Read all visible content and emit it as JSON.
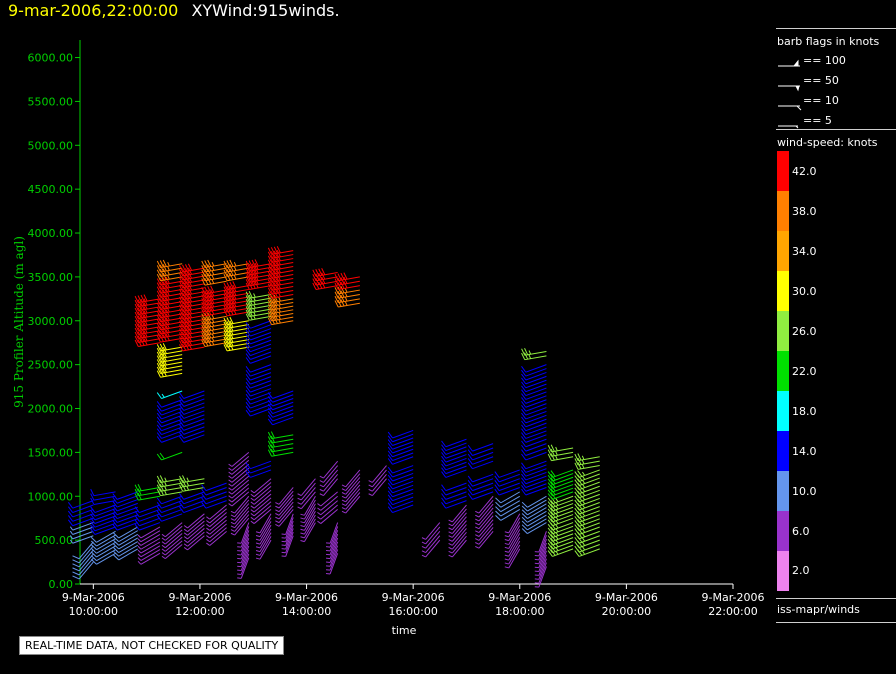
{
  "header": {
    "timestamp": "9-mar-2006,22:00:00",
    "title": "XYWind:915winds."
  },
  "colors": {
    "axis": "#00d000",
    "text": "#ffffff",
    "background": "#000000"
  },
  "legend": {
    "barb_title": "barb flags in knots",
    "barb_items": [
      "== 100",
      "== 50",
      "== 10",
      "== 5"
    ],
    "speed_title": "wind-speed: knots",
    "speed_labels": [
      "42.0",
      "38.0",
      "34.0",
      "30.0",
      "26.0",
      "22.0",
      "18.0",
      "14.0",
      "10.0",
      "6.0",
      "2.0"
    ],
    "speed_colors": [
      "#ff0000",
      "#ff7f00",
      "#ffa500",
      "#ffff00",
      "#90ee40",
      "#00e000",
      "#00ffff",
      "#0000ff",
      "#6495ed",
      "#9932cc",
      "#ee82ee"
    ],
    "source": "iss-mapr/winds"
  },
  "qc_notice": "REAL-TIME DATA, NOT CHECKED FOR QUALITY",
  "chart_data": {
    "type": "scatter",
    "title": "XYWind:915winds.",
    "xlabel": "time",
    "ylabel": "915 Profiler Altitude (m agl)",
    "ylim": [
      0,
      6200
    ],
    "yticks": [
      "0.00",
      "500.00",
      "1000.00",
      "1500.00",
      "2000.00",
      "2500.00",
      "3000.00",
      "3500.00",
      "4000.00",
      "4500.00",
      "5000.00",
      "5500.00",
      "6000.00"
    ],
    "xlim": [
      "9-Mar-2006 09:45:00",
      "9-Mar-2006 22:00:00"
    ],
    "xticks": [
      {
        "date": "9-Mar-2006",
        "time": "10:00:00"
      },
      {
        "date": "9-Mar-2006",
        "time": "12:00:00"
      },
      {
        "date": "9-Mar-2006",
        "time": "14:00:00"
      },
      {
        "date": "9-Mar-2006",
        "time": "16:00:00"
      },
      {
        "date": "9-Mar-2006",
        "time": "18:00:00"
      },
      {
        "date": "9-Mar-2006",
        "time": "20:00:00"
      },
      {
        "date": "9-Mar-2006",
        "time": "22:00:00"
      }
    ],
    "legend": "right",
    "grid": false,
    "profiles": [
      {
        "time": "9-Mar-2006 10:00",
        "layers": [
          [
            250,
            480,
            10,
            220
          ],
          [
            550,
            700,
            8,
            250
          ],
          [
            750,
            950,
            14,
            250
          ]
        ]
      },
      {
        "time": "9-Mar-2006 10:25",
        "layers": [
          [
            350,
            600,
            10,
            240
          ],
          [
            650,
            900,
            12,
            250
          ],
          [
            950,
            1050,
            14,
            260
          ]
        ]
      },
      {
        "time": "9-Mar-2006 10:50",
        "layers": [
          [
            400,
            650,
            10,
            240
          ],
          [
            700,
            1050,
            14,
            250
          ]
        ]
      },
      {
        "time": "9-Mar-2006 11:15",
        "layers": [
          [
            350,
            650,
            6,
            240
          ],
          [
            700,
            900,
            12,
            250
          ],
          [
            1000,
            1100,
            20,
            260
          ],
          [
            2750,
            3250,
            42,
            260
          ]
        ]
      },
      {
        "time": "9-Mar-2006 11:40",
        "layers": [
          [
            450,
            700,
            6,
            230
          ],
          [
            800,
            1000,
            14,
            250
          ],
          [
            1050,
            1200,
            26,
            260
          ],
          [
            1500,
            1500,
            22,
            250
          ],
          [
            1700,
            2100,
            14,
            250
          ],
          [
            2200,
            2200,
            18,
            250
          ],
          [
            2400,
            2700,
            30,
            260
          ],
          [
            2800,
            3450,
            42,
            260
          ],
          [
            3500,
            3650,
            38,
            260
          ]
        ]
      },
      {
        "time": "9-Mar-2006 12:05",
        "layers": [
          [
            550,
            800,
            6,
            230
          ],
          [
            900,
            1050,
            12,
            250
          ],
          [
            1100,
            1200,
            26,
            260
          ],
          [
            1700,
            2200,
            14,
            250
          ],
          [
            2700,
            3600,
            42,
            260
          ]
        ]
      },
      {
        "time": "9-Mar-2006 12:30",
        "layers": [
          [
            600,
            900,
            6,
            230
          ],
          [
            950,
            1150,
            14,
            250
          ],
          [
            2750,
            3050,
            38,
            260
          ],
          [
            3100,
            3350,
            42,
            260
          ],
          [
            3450,
            3650,
            38,
            260
          ]
        ]
      },
      {
        "time": "9-Mar-2006 12:55",
        "layers": [
          [
            300,
            700,
            6,
            200
          ],
          [
            750,
            1000,
            6,
            220
          ],
          [
            1050,
            1500,
            6,
            230
          ],
          [
            2700,
            3000,
            30,
            260
          ],
          [
            3100,
            3400,
            42,
            260
          ],
          [
            3500,
            3650,
            38,
            260
          ]
        ]
      },
      {
        "time": "9-Mar-2006 13:20",
        "layers": [
          [
            500,
            800,
            6,
            210
          ],
          [
            850,
            1200,
            6,
            230
          ],
          [
            1300,
            1400,
            14,
            250
          ],
          [
            2000,
            2500,
            14,
            250
          ],
          [
            2600,
            3000,
            14,
            250
          ],
          [
            3050,
            3300,
            26,
            260
          ],
          [
            3400,
            3650,
            42,
            260
          ]
        ]
      },
      {
        "time": "9-Mar-2006 13:45",
        "layers": [
          [
            550,
            800,
            6,
            200
          ],
          [
            850,
            1100,
            6,
            220
          ],
          [
            1500,
            1700,
            22,
            260
          ],
          [
            1900,
            2200,
            14,
            250
          ],
          [
            3000,
            3250,
            38,
            260
          ],
          [
            3300,
            3800,
            42,
            260
          ]
        ]
      },
      {
        "time": "9-Mar-2006 14:10",
        "layers": [
          [
            700,
            1000,
            6,
            210
          ],
          [
            1050,
            1200,
            6,
            220
          ]
        ]
      },
      {
        "time": "9-Mar-2006 14:35",
        "layers": [
          [
            350,
            700,
            6,
            200
          ],
          [
            850,
            1050,
            6,
            230
          ],
          [
            1200,
            1400,
            6,
            220
          ],
          [
            3400,
            3550,
            42,
            260
          ]
        ]
      },
      {
        "time": "9-Mar-2006 15:00",
        "layers": [
          [
            1000,
            1300,
            6,
            220
          ],
          [
            3200,
            3350,
            38,
            260
          ],
          [
            3400,
            3500,
            42,
            260
          ]
        ]
      },
      {
        "time": "9-Mar-2006 15:30",
        "layers": [
          [
            1200,
            1350,
            6,
            220
          ]
        ]
      },
      {
        "time": "9-Mar-2006 16:00",
        "layers": [
          [
            900,
            1350,
            14,
            250
          ],
          [
            1450,
            1750,
            14,
            250
          ]
        ]
      },
      {
        "time": "9-Mar-2006 16:30",
        "layers": [
          [
            500,
            700,
            6,
            220
          ]
        ]
      },
      {
        "time": "9-Mar-2006 17:00",
        "layers": [
          [
            500,
            900,
            6,
            220
          ],
          [
            950,
            1150,
            14,
            250
          ],
          [
            1300,
            1650,
            14,
            250
          ]
        ]
      },
      {
        "time": "9-Mar-2006 17:30",
        "layers": [
          [
            600,
            1000,
            6,
            220
          ],
          [
            1050,
            1250,
            14,
            250
          ],
          [
            1400,
            1600,
            14,
            250
          ]
        ]
      },
      {
        "time": "9-Mar-2006 18:00",
        "layers": [
          [
            400,
            800,
            6,
            210
          ],
          [
            850,
            1050,
            10,
            240
          ],
          [
            1100,
            1300,
            14,
            250
          ]
        ]
      },
      {
        "time": "9-Mar-2006 18:30",
        "layers": [
          [
            200,
            600,
            6,
            200
          ],
          [
            700,
            1000,
            10,
            240
          ],
          [
            1100,
            1400,
            14,
            250
          ],
          [
            1500,
            1650,
            14,
            250
          ],
          [
            1700,
            2500,
            14,
            250
          ],
          [
            2600,
            2650,
            26,
            260
          ]
        ]
      },
      {
        "time": "9-Mar-2006 19:00",
        "layers": [
          [
            400,
            700,
            26,
            250
          ],
          [
            750,
            1000,
            26,
            250
          ],
          [
            1050,
            1300,
            22,
            250
          ],
          [
            1450,
            1550,
            26,
            260
          ]
        ]
      },
      {
        "time": "9-Mar-2006 19:30",
        "layers": [
          [
            400,
            600,
            26,
            250
          ],
          [
            650,
            1300,
            26,
            250
          ],
          [
            1350,
            1450,
            26,
            260
          ]
        ]
      }
    ]
  }
}
